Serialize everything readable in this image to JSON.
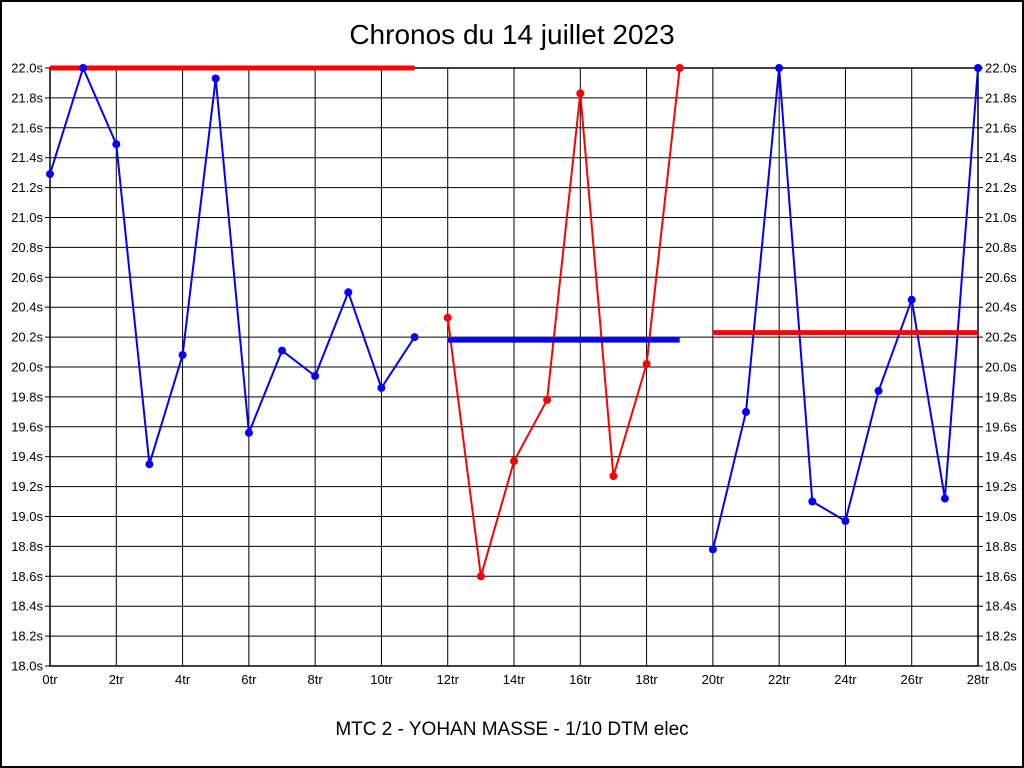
{
  "title": "Chronos du 14 juillet 2023",
  "caption": "MTC 2 - YOHAN MASSE - 1/10 DTM elec",
  "chart_data": {
    "type": "line",
    "title": "Chronos du 14 juillet 2023",
    "subtitle": "MTC 2 - YOHAN MASSE - 1/10 DTM elec",
    "xlabel": "",
    "ylabel": "",
    "x_unit": "tr",
    "y_unit": "s",
    "xlim": [
      0,
      28
    ],
    "ylim": [
      18.0,
      22.0
    ],
    "grid": true,
    "legend": "none",
    "x_ticks": [
      "0tr",
      "2tr",
      "4tr",
      "6tr",
      "8tr",
      "10tr",
      "12tr",
      "14tr",
      "16tr",
      "18tr",
      "20tr",
      "22tr",
      "24tr",
      "26tr",
      "28tr"
    ],
    "y_ticks": [
      "22.0s",
      "21.8s",
      "21.6s",
      "21.4s",
      "21.2s",
      "21.0s",
      "20.8s",
      "20.6s",
      "20.4s",
      "20.2s",
      "20.0s",
      "19.8s",
      "19.6s",
      "19.4s",
      "19.2s",
      "19.0s",
      "18.8s",
      "18.6s",
      "18.4s",
      "18.2s",
      "18.0s"
    ],
    "colors": {
      "blue": "#0000ff",
      "red": "#ff0000",
      "grid": "#000000",
      "background": "#ffffff"
    },
    "series": [
      {
        "name": "laps-blue-run-1",
        "color": "#0000ff",
        "x": [
          0,
          1,
          2,
          3,
          4,
          5,
          6,
          7,
          8,
          9,
          10,
          11
        ],
        "values": [
          21.29,
          22.0,
          21.49,
          19.35,
          20.08,
          21.93,
          19.56,
          20.11,
          19.94,
          20.5,
          19.86,
          20.2
        ]
      },
      {
        "name": "laps-red-run",
        "color": "#ff0000",
        "x": [
          12,
          13,
          14,
          15,
          16,
          17,
          18,
          19
        ],
        "values": [
          20.33,
          18.6,
          19.37,
          19.78,
          21.83,
          19.27,
          20.02,
          22.0
        ]
      },
      {
        "name": "laps-blue-run-2",
        "color": "#0000ff",
        "x": [
          20,
          21,
          22,
          23,
          24,
          25,
          26,
          27,
          28
        ],
        "values": [
          18.78,
          19.7,
          22.0,
          19.1,
          18.97,
          19.84,
          20.45,
          19.12,
          22.0
        ]
      }
    ],
    "reference_lines": [
      {
        "name": "ref-line-red-run-1",
        "color": "#ff0000",
        "value": 22.0,
        "x_start": 0,
        "x_end": 11
      },
      {
        "name": "ref-line-blue-run",
        "color": "#0000ff",
        "value": 20.18,
        "x_start": 12,
        "x_end": 19
      },
      {
        "name": "ref-line-red-run-2",
        "color": "#ff0000",
        "value": 20.23,
        "x_start": 20,
        "x_end": 28
      }
    ]
  }
}
